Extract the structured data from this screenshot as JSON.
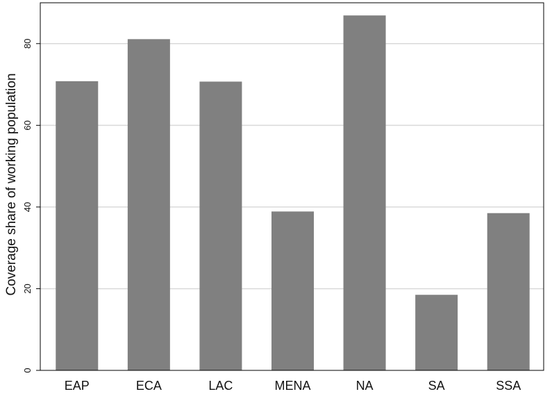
{
  "chart_data": {
    "type": "bar",
    "categories": [
      "EAP",
      "ECA",
      "LAC",
      "MENA",
      "NA",
      "SA",
      "SSA"
    ],
    "values": [
      70.8,
      81.1,
      70.7,
      38.9,
      86.9,
      18.5,
      38.5
    ],
    "title": "",
    "xlabel": "",
    "ylabel": "Coverage share of working population",
    "ylim": [
      0,
      90
    ],
    "yticks": [
      0,
      20,
      40,
      60,
      80
    ],
    "grid": true,
    "legend": "none"
  },
  "colors": {
    "bar": "#808080",
    "grid": "#d9d9d9",
    "axis": "#000000",
    "background": "#ffffff"
  }
}
